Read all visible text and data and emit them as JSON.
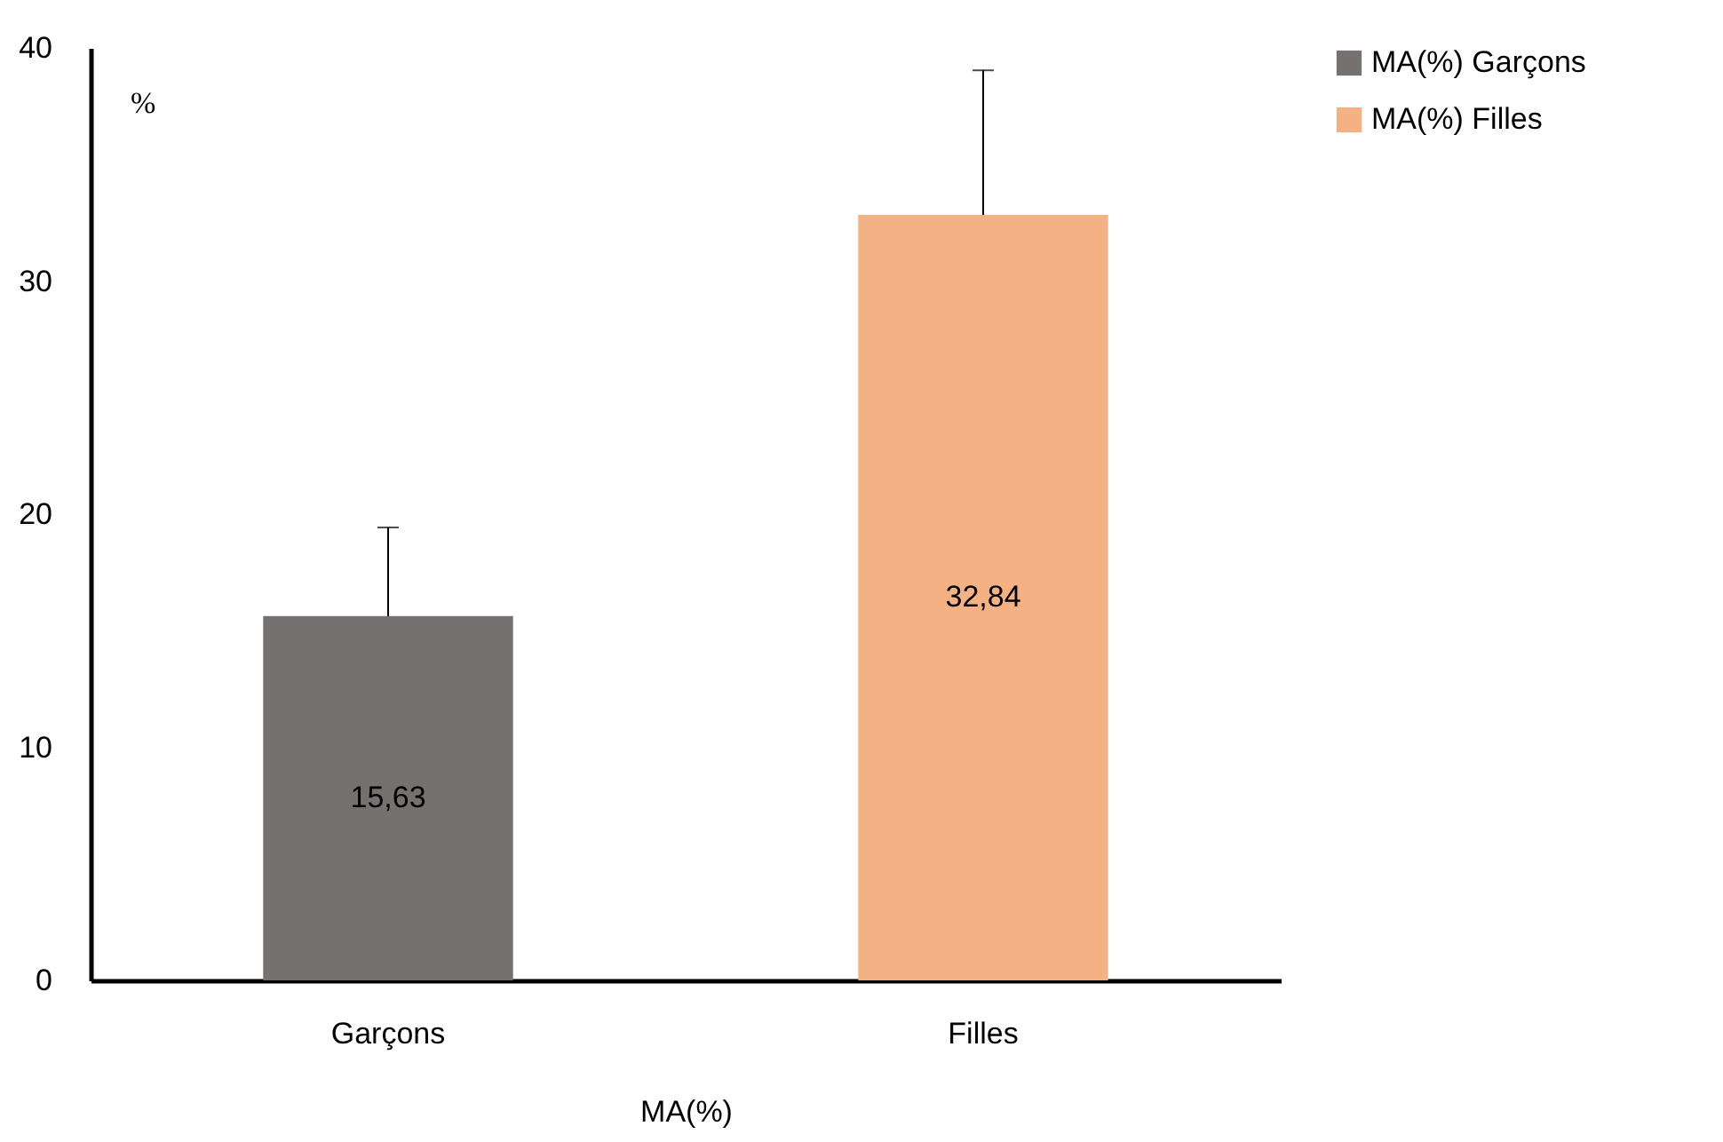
{
  "chart_data": {
    "type": "bar",
    "xlabel": "MA(%)",
    "ylabel": "%",
    "categories": [
      "Garçons",
      "Filles"
    ],
    "series": [
      {
        "name": "MA(%) Garçons",
        "color": "#767171",
        "values": [
          15.63,
          null
        ],
        "errors": [
          3.8,
          null
        ],
        "value_labels": [
          "15,63",
          null
        ]
      },
      {
        "name": "MA(%) Filles",
        "color": "#f4b183",
        "values": [
          null,
          32.84
        ],
        "errors": [
          null,
          6.2
        ],
        "value_labels": [
          null,
          "32,84"
        ]
      }
    ],
    "ylim": [
      0,
      40
    ],
    "yticks": [
      0,
      10,
      20,
      30,
      40
    ],
    "grid": false,
    "legend": "right"
  }
}
